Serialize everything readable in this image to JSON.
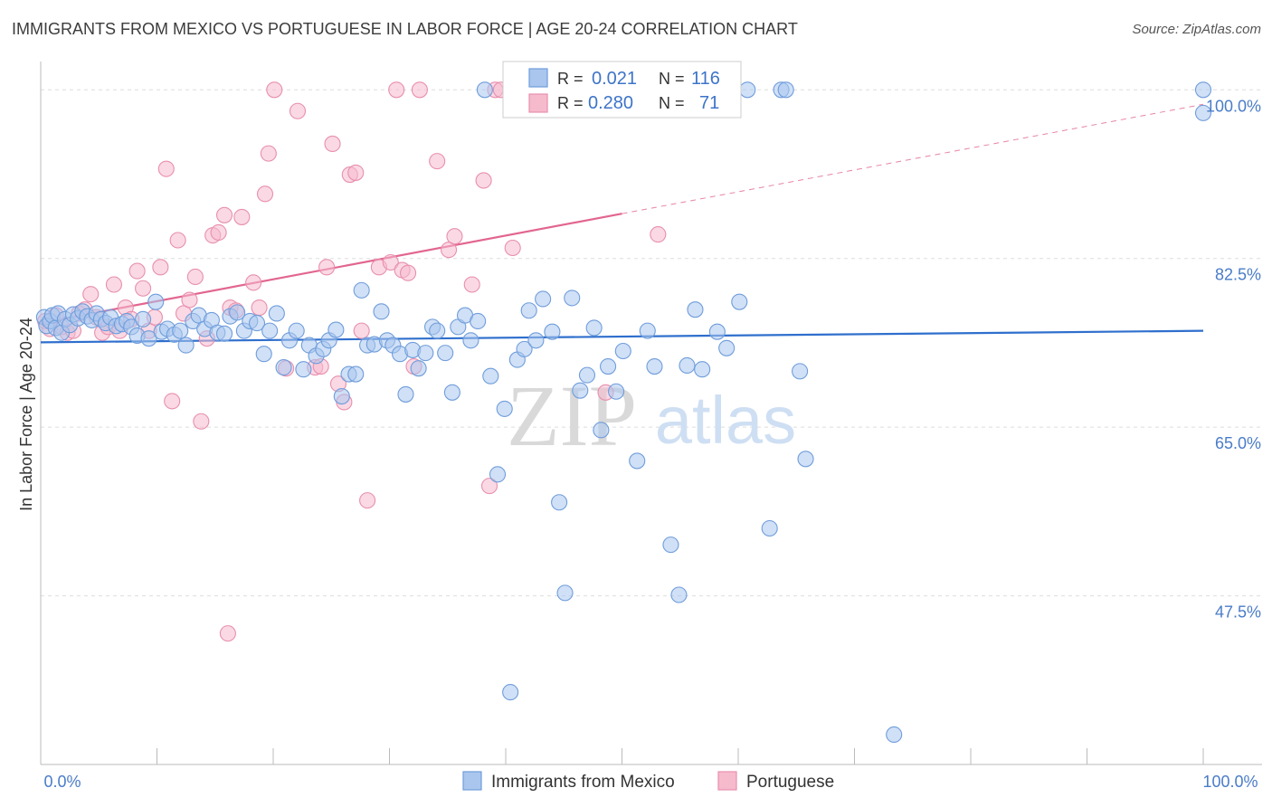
{
  "title": "IMMIGRANTS FROM MEXICO VS PORTUGUESE IN LABOR FORCE | AGE 20-24 CORRELATION CHART",
  "source": "Source: ZipAtlas.com",
  "watermark": {
    "zip": "ZIP",
    "atlas": "atlas"
  },
  "colors": {
    "blue_fill": "#aac6ee",
    "blue_stroke": "#6f9ddb",
    "blue_line": "#2f6fcd",
    "pink_fill": "#f6bacd",
    "pink_stroke": "#e88fae",
    "pink_line": "#e2668f",
    "tick_label": "#4a7cc8",
    "grid": "#dddddd"
  },
  "legend": {
    "rows": [
      {
        "r_label": "R =",
        "r_value": "0.021",
        "n_label": "N =",
        "n_value": "116"
      },
      {
        "r_label": "R =",
        "r_value": "0.280",
        "n_label": "N =",
        "n_value": "71"
      }
    ]
  },
  "chart_data": {
    "type": "scatter",
    "title": "IMMIGRANTS FROM MEXICO VS PORTUGUESE IN LABOR FORCE | AGE 20-24 CORRELATION CHART",
    "xlabel": "",
    "ylabel": "In Labor Force | Age 20-24",
    "xlim": [
      0,
      100
    ],
    "ylim": [
      30,
      102
    ],
    "x_tick_labels": [
      "0.0%",
      "100.0%"
    ],
    "y_ticks": [
      47.5,
      65.0,
      82.5,
      100.0
    ],
    "y_tick_labels": [
      "47.5%",
      "65.0%",
      "82.5%",
      "100.0%"
    ],
    "legend_position": "top-center",
    "series": [
      {
        "name": "Immigrants from Mexico",
        "r": 0.021,
        "n": 116,
        "trend": {
          "x0": 0,
          "y0": 73.8,
          "x1": 100,
          "y1": 75.0
        },
        "points": [
          [
            0.3,
            76.4
          ],
          [
            0.5,
            75.5
          ],
          [
            0.8,
            76.0
          ],
          [
            1.0,
            76.6
          ],
          [
            1.3,
            75.3
          ],
          [
            1.5,
            76.8
          ],
          [
            1.8,
            74.8
          ],
          [
            2.1,
            76.2
          ],
          [
            2.5,
            75.6
          ],
          [
            2.8,
            76.7
          ],
          [
            3.2,
            76.3
          ],
          [
            3.6,
            77.0
          ],
          [
            4.0,
            76.5
          ],
          [
            4.4,
            76.1
          ],
          [
            4.8,
            76.8
          ],
          [
            5.2,
            76.2
          ],
          [
            5.6,
            75.8
          ],
          [
            6.0,
            76.4
          ],
          [
            6.5,
            75.5
          ],
          [
            7.0,
            75.7
          ],
          [
            7.4,
            76.0
          ],
          [
            7.8,
            75.4
          ],
          [
            8.3,
            74.5
          ],
          [
            8.8,
            76.2
          ],
          [
            9.3,
            74.2
          ],
          [
            9.9,
            78.0
          ],
          [
            10.4,
            74.9
          ],
          [
            10.9,
            75.2
          ],
          [
            11.5,
            74.6
          ],
          [
            12.0,
            75.0
          ],
          [
            12.5,
            73.5
          ],
          [
            13.1,
            76.0
          ],
          [
            13.6,
            76.6
          ],
          [
            14.1,
            75.2
          ],
          [
            14.7,
            76.1
          ],
          [
            15.2,
            74.8
          ],
          [
            15.8,
            74.7
          ],
          [
            16.3,
            76.5
          ],
          [
            16.9,
            76.9
          ],
          [
            17.5,
            75.0
          ],
          [
            18.0,
            76.0
          ],
          [
            18.6,
            75.8
          ],
          [
            19.2,
            72.6
          ],
          [
            19.7,
            75.0
          ],
          [
            20.3,
            76.8
          ],
          [
            20.9,
            71.2
          ],
          [
            21.4,
            74.0
          ],
          [
            22.0,
            75.0
          ],
          [
            22.6,
            71.0
          ],
          [
            23.1,
            73.5
          ],
          [
            23.7,
            72.4
          ],
          [
            24.3,
            73.1
          ],
          [
            24.8,
            74.0
          ],
          [
            25.4,
            75.1
          ],
          [
            25.9,
            68.2
          ],
          [
            26.5,
            70.5
          ],
          [
            27.1,
            70.5
          ],
          [
            27.6,
            79.2
          ],
          [
            28.1,
            73.5
          ],
          [
            28.7,
            73.6
          ],
          [
            29.3,
            77.0
          ],
          [
            29.8,
            74.0
          ],
          [
            30.3,
            73.5
          ],
          [
            30.9,
            72.6
          ],
          [
            31.4,
            68.4
          ],
          [
            32.0,
            73.0
          ],
          [
            32.5,
            71.1
          ],
          [
            33.1,
            72.7
          ],
          [
            33.7,
            75.4
          ],
          [
            34.1,
            75.0
          ],
          [
            34.8,
            72.7
          ],
          [
            35.4,
            68.6
          ],
          [
            35.9,
            75.4
          ],
          [
            36.5,
            76.6
          ],
          [
            37.0,
            74.0
          ],
          [
            37.6,
            76.0
          ],
          [
            38.2,
            100.0
          ],
          [
            38.7,
            70.3
          ],
          [
            39.3,
            60.1
          ],
          [
            39.9,
            66.9
          ],
          [
            40.4,
            37.5
          ],
          [
            41.0,
            72.0
          ],
          [
            41.6,
            73.1
          ],
          [
            42.0,
            77.1
          ],
          [
            42.6,
            74.0
          ],
          [
            43.2,
            78.3
          ],
          [
            44.0,
            74.9
          ],
          [
            44.6,
            57.2
          ],
          [
            45.1,
            47.8
          ],
          [
            45.7,
            78.4
          ],
          [
            46.4,
            68.8
          ],
          [
            47.0,
            70.4
          ],
          [
            47.6,
            75.3
          ],
          [
            48.2,
            64.7
          ],
          [
            48.8,
            71.3
          ],
          [
            49.5,
            68.7
          ],
          [
            50.1,
            72.9
          ],
          [
            50.7,
            100.0
          ],
          [
            51.3,
            61.5
          ],
          [
            52.2,
            75.0
          ],
          [
            52.8,
            71.3
          ],
          [
            53.5,
            100.0
          ],
          [
            54.2,
            52.8
          ],
          [
            54.9,
            47.6
          ],
          [
            55.6,
            71.4
          ],
          [
            56.3,
            77.2
          ],
          [
            56.9,
            71.0
          ],
          [
            57.6,
            100.0
          ],
          [
            58.2,
            74.9
          ],
          [
            59.0,
            73.2
          ],
          [
            60.1,
            78.0
          ],
          [
            60.8,
            100.0
          ],
          [
            62.7,
            54.5
          ],
          [
            63.7,
            100.0
          ],
          [
            64.1,
            100.0
          ],
          [
            65.3,
            70.8
          ],
          [
            65.8,
            61.7
          ],
          [
            73.4,
            33.1
          ],
          [
            100.0,
            100.0
          ],
          [
            100.0,
            97.6
          ]
        ]
      },
      {
        "name": "Portuguese",
        "r": 0.28,
        "n": 71,
        "trend": {
          "x0": 0,
          "y0": 75.8,
          "x1": 100,
          "y1": 98.5,
          "solid_until_x": 50
        },
        "points": [
          [
            0.4,
            76.0
          ],
          [
            0.8,
            75.2
          ],
          [
            1.3,
            76.6
          ],
          [
            1.8,
            75.4
          ],
          [
            2.3,
            74.8
          ],
          [
            2.8,
            75.0
          ],
          [
            3.3,
            76.8
          ],
          [
            3.8,
            77.2
          ],
          [
            4.3,
            78.8
          ],
          [
            4.8,
            76.4
          ],
          [
            5.3,
            74.8
          ],
          [
            5.8,
            75.4
          ],
          [
            6.3,
            79.8
          ],
          [
            6.8,
            75.0
          ],
          [
            7.3,
            77.4
          ],
          [
            7.8,
            76.2
          ],
          [
            8.3,
            81.2
          ],
          [
            8.8,
            79.4
          ],
          [
            9.3,
            75.0
          ],
          [
            9.8,
            76.4
          ],
          [
            10.3,
            81.6
          ],
          [
            10.8,
            91.8
          ],
          [
            11.3,
            67.7
          ],
          [
            11.8,
            84.4
          ],
          [
            12.3,
            76.8
          ],
          [
            12.8,
            78.2
          ],
          [
            13.3,
            80.6
          ],
          [
            13.8,
            65.6
          ],
          [
            14.3,
            74.2
          ],
          [
            14.8,
            84.9
          ],
          [
            15.3,
            85.2
          ],
          [
            15.8,
            87.0
          ],
          [
            16.3,
            77.4
          ],
          [
            16.8,
            77.1
          ],
          [
            17.3,
            86.8
          ],
          [
            18.3,
            80.0
          ],
          [
            18.8,
            77.4
          ],
          [
            19.3,
            89.2
          ],
          [
            19.6,
            93.4
          ],
          [
            20.1,
            100.0
          ],
          [
            21.1,
            71.1
          ],
          [
            22.1,
            97.8
          ],
          [
            23.6,
            71.2
          ],
          [
            24.1,
            71.3
          ],
          [
            24.6,
            81.6
          ],
          [
            25.1,
            94.4
          ],
          [
            25.6,
            69.5
          ],
          [
            26.1,
            67.6
          ],
          [
            26.6,
            91.2
          ],
          [
            27.1,
            91.4
          ],
          [
            27.6,
            75.0
          ],
          [
            28.1,
            57.4
          ],
          [
            29.1,
            81.6
          ],
          [
            30.1,
            82.1
          ],
          [
            30.6,
            100.0
          ],
          [
            31.1,
            81.3
          ],
          [
            31.6,
            81.0
          ],
          [
            32.1,
            71.3
          ],
          [
            32.6,
            100.0
          ],
          [
            34.1,
            92.6
          ],
          [
            35.1,
            83.4
          ],
          [
            35.6,
            84.8
          ],
          [
            37.1,
            79.8
          ],
          [
            38.1,
            90.6
          ],
          [
            38.6,
            58.9
          ],
          [
            39.1,
            100.0
          ],
          [
            39.6,
            100.0
          ],
          [
            40.6,
            83.6
          ],
          [
            48.6,
            68.6
          ],
          [
            53.1,
            85.0
          ],
          [
            16.1,
            43.6
          ]
        ]
      }
    ]
  },
  "bottom_legend": [
    {
      "label": "Immigrants from Mexico"
    },
    {
      "label": "Portuguese"
    }
  ]
}
